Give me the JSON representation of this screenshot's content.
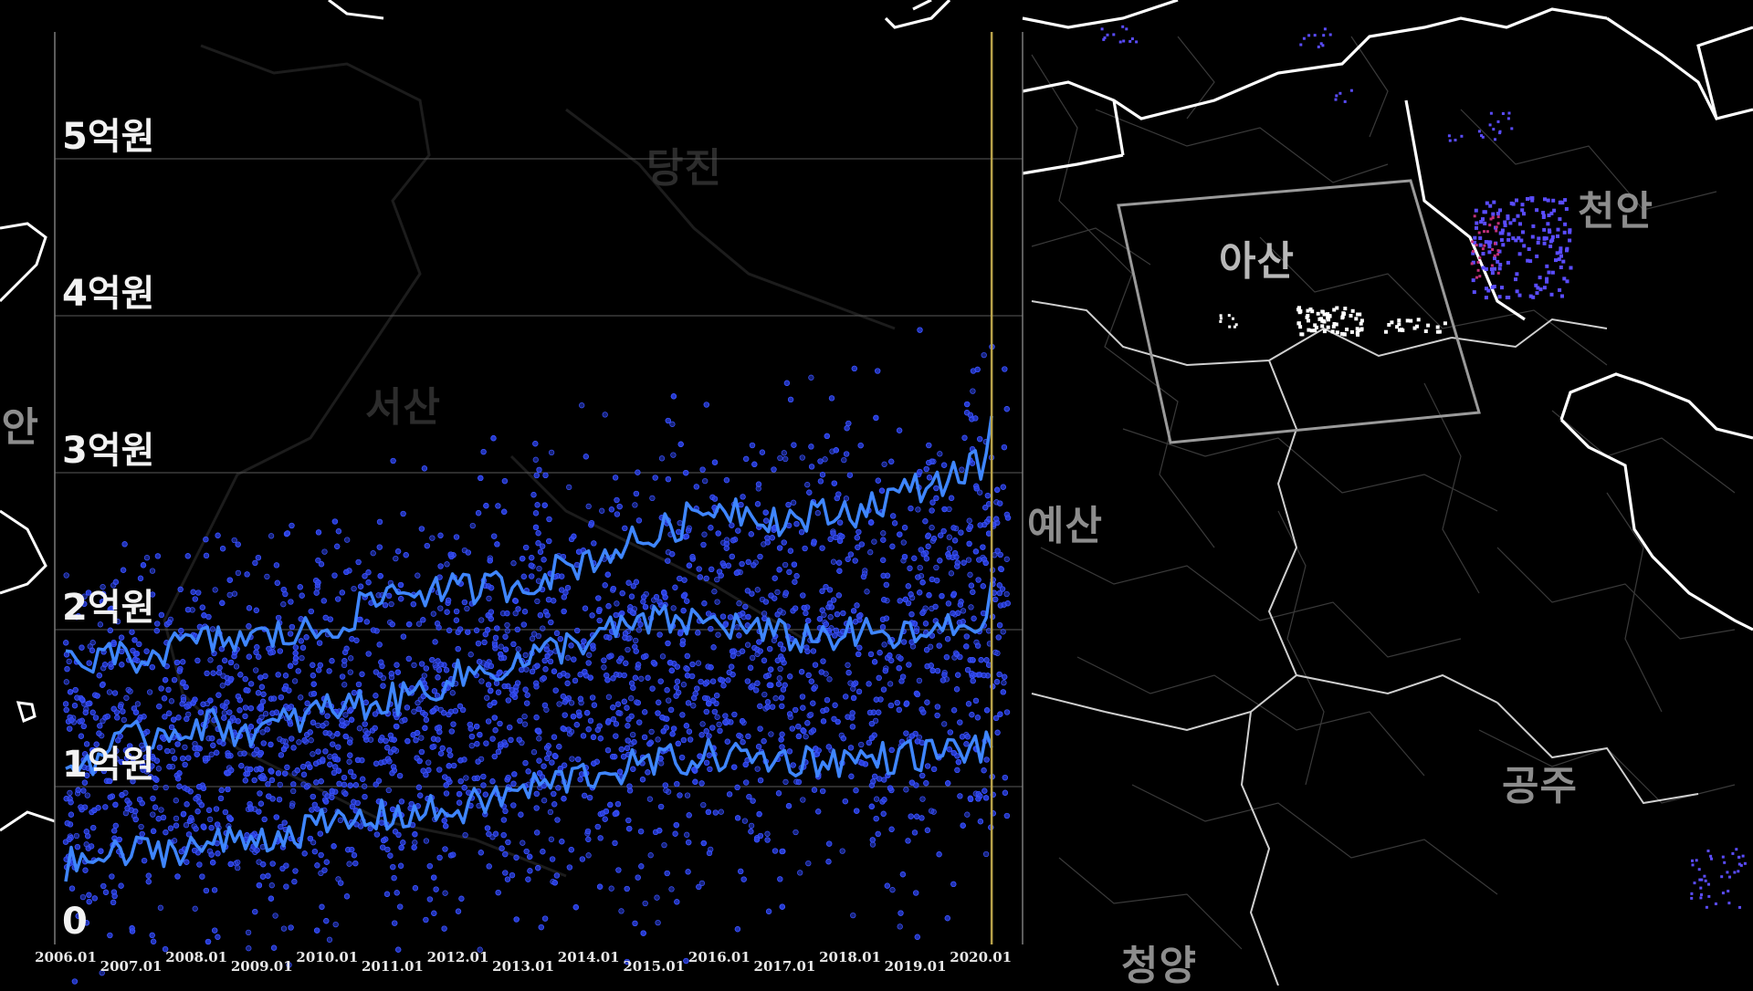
{
  "map": {
    "region_labels": [
      {
        "name": "아산",
        "style": "bright"
      },
      {
        "name": "천안",
        "style": "normal"
      },
      {
        "name": "예산",
        "style": "normal"
      },
      {
        "name": "공주",
        "style": "normal"
      },
      {
        "name": "청양",
        "style": "normal"
      },
      {
        "name": "당진",
        "style": "faint"
      },
      {
        "name": "서산",
        "style": "faint"
      },
      {
        "name": "태안",
        "style": "normal"
      }
    ],
    "colors": {
      "background": "#000000",
      "province_border": "#ffffff",
      "district_border": "#3a3a3a",
      "selection_box": "#9a9a9a",
      "highlight_points": "#ffffff",
      "cheonan_points": "#5a4cff",
      "cheonan_points_alt": "#c0307a"
    }
  },
  "chart_data": {
    "type": "scatter",
    "title": "",
    "xlabel": "",
    "ylabel": "",
    "y_tick_labels": [
      "0",
      "1억원",
      "2억원",
      "3억원",
      "4억원",
      "5억원"
    ],
    "y_tick_values": [
      0,
      1,
      2,
      3,
      4,
      5
    ],
    "ylim": [
      0,
      5.8
    ],
    "x_tick_labels": [
      "2006.01",
      "2007.01",
      "2008.01",
      "2009.01",
      "2010.01",
      "2011.01",
      "2012.01",
      "2013.01",
      "2014.01",
      "2015.01",
      "2016.01",
      "2017.01",
      "2018.01",
      "2019.01",
      "2020.01"
    ],
    "xlim": [
      "2006.01",
      "2020.07"
    ],
    "current_marker": "2020.03",
    "grid": true,
    "colors": {
      "points": "#2a3fe0",
      "lines": "#3f86ff",
      "grid": "#5a5a5a",
      "axis": "#7a7a7a",
      "marker": "#b8a24a"
    },
    "series": [
      {
        "x": [
          "2006.01",
          "2007.01",
          "2008.01",
          "2009.01",
          "2010.01",
          "2011.01",
          "2012.01",
          "2013.01",
          "2014.01",
          "2015.01",
          "2016.01",
          "2017.01",
          "2018.01",
          "2019.01",
          "2020.01",
          "2020.03"
        ],
        "values": [
          1.78,
          1.82,
          1.92,
          1.95,
          2.0,
          2.25,
          2.25,
          2.3,
          2.45,
          2.6,
          2.8,
          2.7,
          2.75,
          2.9,
          3.05,
          3.3
        ]
      },
      {
        "x": [
          "2006.01",
          "2007.01",
          "2008.01",
          "2009.01",
          "2010.01",
          "2011.01",
          "2012.01",
          "2013.01",
          "2014.01",
          "2015.01",
          "2016.01",
          "2017.01",
          "2018.01",
          "2019.01",
          "2020.01",
          "2020.03"
        ],
        "values": [
          1.1,
          1.3,
          1.4,
          1.35,
          1.5,
          1.55,
          1.7,
          1.8,
          1.95,
          2.05,
          2.05,
          1.95,
          1.97,
          1.95,
          2.05,
          2.2
        ]
      },
      {
        "x": [
          "2006.01",
          "2007.01",
          "2008.01",
          "2009.01",
          "2010.01",
          "2011.01",
          "2012.01",
          "2013.01",
          "2014.01",
          "2015.01",
          "2016.01",
          "2017.01",
          "2018.01",
          "2019.01",
          "2020.01",
          "2020.03"
        ],
        "values": [
          0.5,
          0.58,
          0.62,
          0.68,
          0.75,
          0.82,
          0.85,
          0.98,
          1.08,
          1.15,
          1.2,
          1.17,
          1.17,
          1.2,
          1.25,
          1.3
        ]
      }
    ],
    "point_band": {
      "x": [
        "2006.01",
        "2008.01",
        "2010.01",
        "2012.01",
        "2014.01",
        "2016.01",
        "2018.01",
        "2020.01"
      ],
      "low": [
        0.35,
        0.4,
        0.45,
        0.55,
        0.65,
        0.75,
        0.8,
        0.85
      ],
      "high": [
        2.0,
        2.1,
        2.3,
        2.5,
        2.75,
        2.95,
        3.05,
        3.3
      ]
    }
  }
}
